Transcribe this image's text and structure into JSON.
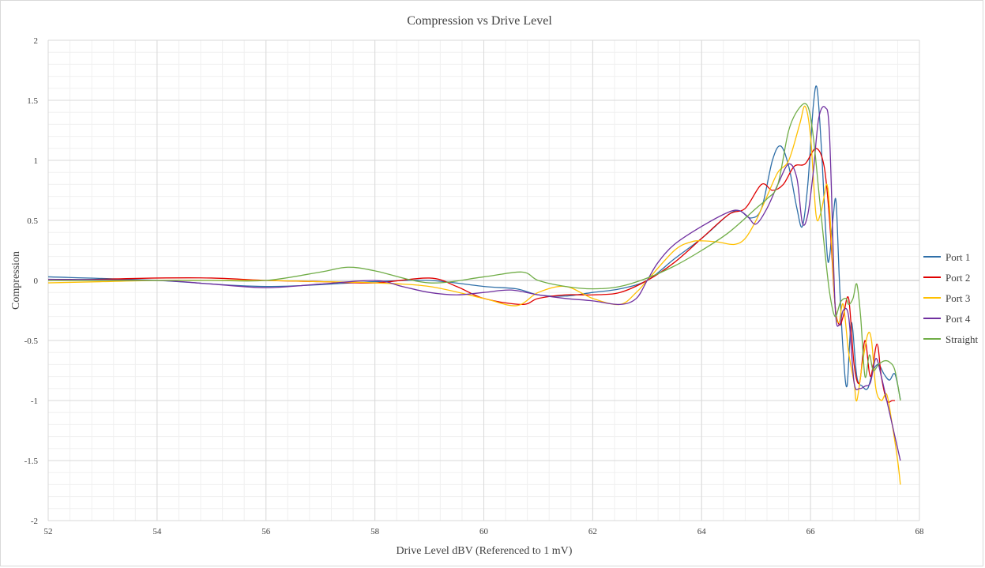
{
  "chart_data": {
    "type": "line",
    "title": "Compression vs Drive Level",
    "xlabel": "Drive Level dBV (Referenced to 1 mV)",
    "ylabel": "Compression",
    "xlim": [
      52,
      68
    ],
    "ylim": [
      -2,
      2
    ],
    "x_major_step": 2,
    "y_major_step": 0.5,
    "x_tick_labels": [
      "52",
      "54",
      "56",
      "58",
      "60",
      "62",
      "64",
      "66",
      "68"
    ],
    "y_tick_labels": [
      "-2",
      "-1.5",
      "-1",
      "-0.5",
      "0",
      "0.5",
      "1",
      "1.5",
      "2"
    ],
    "grid": "major and minor",
    "smoothed": true,
    "legend_position": "right",
    "series": [
      {
        "name": "Port 1",
        "color": "#2f6fa8",
        "points": [
          [
            52,
            0.03
          ],
          [
            54,
            0.0
          ],
          [
            56,
            -0.05
          ],
          [
            58,
            -0.01
          ],
          [
            59,
            0.0
          ],
          [
            60,
            -0.05
          ],
          [
            60.6,
            -0.07
          ],
          [
            61,
            -0.12
          ],
          [
            61.5,
            -0.13
          ],
          [
            62,
            -0.1
          ],
          [
            62.5,
            -0.07
          ],
          [
            63,
            0.0
          ],
          [
            63.5,
            0.18
          ],
          [
            64,
            0.35
          ],
          [
            64.5,
            0.55
          ],
          [
            64.7,
            0.58
          ],
          [
            64.9,
            0.52
          ],
          [
            65.1,
            0.6
          ],
          [
            65.3,
            1.0
          ],
          [
            65.45,
            1.12
          ],
          [
            65.6,
            0.95
          ],
          [
            65.75,
            0.6
          ],
          [
            65.85,
            0.45
          ],
          [
            65.95,
            0.8
          ],
          [
            66.05,
            1.45
          ],
          [
            66.12,
            1.6
          ],
          [
            66.2,
            1.1
          ],
          [
            66.3,
            0.25
          ],
          [
            66.35,
            0.2
          ],
          [
            66.42,
            0.55
          ],
          [
            66.47,
            0.65
          ],
          [
            66.53,
            0.0
          ],
          [
            66.6,
            -0.6
          ],
          [
            66.67,
            -0.88
          ],
          [
            66.75,
            -0.35
          ],
          [
            66.85,
            -0.8
          ],
          [
            66.95,
            -0.88
          ],
          [
            67.05,
            -0.9
          ],
          [
            67.15,
            -0.75
          ],
          [
            67.25,
            -0.7
          ],
          [
            67.35,
            -0.78
          ],
          [
            67.45,
            -0.83
          ],
          [
            67.55,
            -0.78
          ],
          [
            67.65,
            -0.99
          ]
        ]
      },
      {
        "name": "Port 2",
        "color": "#e00000",
        "points": [
          [
            52,
            0.0
          ],
          [
            53,
            0.01
          ],
          [
            54,
            0.02
          ],
          [
            55,
            0.02
          ],
          [
            56,
            0.0
          ],
          [
            57,
            -0.01
          ],
          [
            58,
            -0.02
          ],
          [
            59,
            0.02
          ],
          [
            59.5,
            -0.05
          ],
          [
            60,
            -0.15
          ],
          [
            60.7,
            -0.2
          ],
          [
            61,
            -0.15
          ],
          [
            61.5,
            -0.12
          ],
          [
            62,
            -0.12
          ],
          [
            62.5,
            -0.1
          ],
          [
            63,
            0.0
          ],
          [
            63.5,
            0.15
          ],
          [
            64,
            0.35
          ],
          [
            64.5,
            0.55
          ],
          [
            64.8,
            0.6
          ],
          [
            65.1,
            0.8
          ],
          [
            65.3,
            0.75
          ],
          [
            65.5,
            0.8
          ],
          [
            65.7,
            0.95
          ],
          [
            65.9,
            0.97
          ],
          [
            66.1,
            1.1
          ],
          [
            66.25,
            0.95
          ],
          [
            66.35,
            0.5
          ],
          [
            66.45,
            -0.2
          ],
          [
            66.53,
            -0.37
          ],
          [
            66.6,
            -0.3
          ],
          [
            66.7,
            -0.15
          ],
          [
            66.8,
            -0.7
          ],
          [
            66.9,
            -0.85
          ],
          [
            67.0,
            -0.5
          ],
          [
            67.1,
            -0.8
          ],
          [
            67.22,
            -0.53
          ],
          [
            67.3,
            -0.8
          ],
          [
            67.4,
            -1.0
          ],
          [
            67.5,
            -1.0
          ],
          [
            67.55,
            -1.0
          ]
        ]
      },
      {
        "name": "Port 3",
        "color": "#ffc000",
        "points": [
          [
            52,
            -0.02
          ],
          [
            53,
            -0.01
          ],
          [
            54,
            0.0
          ],
          [
            55,
            0.0
          ],
          [
            56,
            0.0
          ],
          [
            57,
            -0.01
          ],
          [
            58,
            -0.02
          ],
          [
            59,
            -0.05
          ],
          [
            60,
            -0.15
          ],
          [
            60.6,
            -0.21
          ],
          [
            61,
            -0.1
          ],
          [
            61.5,
            -0.05
          ],
          [
            62,
            -0.15
          ],
          [
            62.5,
            -0.2
          ],
          [
            62.8,
            -0.1
          ],
          [
            63,
            0.0
          ],
          [
            63.5,
            0.25
          ],
          [
            63.8,
            0.32
          ],
          [
            64,
            0.33
          ],
          [
            64.3,
            0.32
          ],
          [
            64.6,
            0.3
          ],
          [
            64.8,
            0.35
          ],
          [
            65.0,
            0.5
          ],
          [
            65.2,
            0.7
          ],
          [
            65.4,
            0.9
          ],
          [
            65.6,
            1.0
          ],
          [
            65.8,
            1.3
          ],
          [
            65.9,
            1.45
          ],
          [
            66.0,
            1.2
          ],
          [
            66.1,
            0.55
          ],
          [
            66.18,
            0.55
          ],
          [
            66.25,
            0.7
          ],
          [
            66.3,
            0.8
          ],
          [
            66.35,
            0.6
          ],
          [
            66.45,
            -0.2
          ],
          [
            66.52,
            -0.35
          ],
          [
            66.6,
            -0.2
          ],
          [
            66.7,
            -0.6
          ],
          [
            66.8,
            -0.85
          ],
          [
            66.85,
            -1.0
          ],
          [
            66.95,
            -0.7
          ],
          [
            67.05,
            -0.45
          ],
          [
            67.12,
            -0.5
          ],
          [
            67.2,
            -0.9
          ],
          [
            67.3,
            -1.0
          ],
          [
            67.4,
            -0.95
          ],
          [
            67.5,
            -1.2
          ],
          [
            67.6,
            -1.5
          ],
          [
            67.65,
            -1.7
          ]
        ]
      },
      {
        "name": "Port 4",
        "color": "#7030a0",
        "points": [
          [
            52,
            0.01
          ],
          [
            54,
            0.0
          ],
          [
            55,
            -0.03
          ],
          [
            56,
            -0.06
          ],
          [
            57,
            -0.03
          ],
          [
            58,
            0.0
          ],
          [
            58.5,
            -0.05
          ],
          [
            59,
            -0.1
          ],
          [
            59.5,
            -0.12
          ],
          [
            60,
            -0.1
          ],
          [
            60.5,
            -0.08
          ],
          [
            61,
            -0.12
          ],
          [
            61.5,
            -0.15
          ],
          [
            62,
            -0.17
          ],
          [
            62.5,
            -0.2
          ],
          [
            62.8,
            -0.15
          ],
          [
            63,
            0.0
          ],
          [
            63.2,
            0.15
          ],
          [
            63.5,
            0.3
          ],
          [
            64,
            0.45
          ],
          [
            64.5,
            0.57
          ],
          [
            64.7,
            0.58
          ],
          [
            64.85,
            0.53
          ],
          [
            65.0,
            0.47
          ],
          [
            65.2,
            0.6
          ],
          [
            65.4,
            0.8
          ],
          [
            65.6,
            0.97
          ],
          [
            65.75,
            0.85
          ],
          [
            65.85,
            0.48
          ],
          [
            65.95,
            0.55
          ],
          [
            66.05,
            0.9
          ],
          [
            66.15,
            1.35
          ],
          [
            66.27,
            1.44
          ],
          [
            66.35,
            1.2
          ],
          [
            66.45,
            -0.2
          ],
          [
            66.53,
            -0.37
          ],
          [
            66.6,
            -0.25
          ],
          [
            66.7,
            -0.3
          ],
          [
            66.8,
            -0.85
          ],
          [
            66.9,
            -0.9
          ],
          [
            67.0,
            -0.88
          ],
          [
            67.1,
            -0.85
          ],
          [
            67.2,
            -0.65
          ],
          [
            67.3,
            -0.8
          ],
          [
            67.4,
            -1.0
          ],
          [
            67.5,
            -1.2
          ],
          [
            67.6,
            -1.4
          ],
          [
            67.65,
            -1.5
          ]
        ]
      },
      {
        "name": "Straight",
        "color": "#70ad47",
        "points": [
          [
            52,
            0.0
          ],
          [
            53,
            0.0
          ],
          [
            54,
            0.0
          ],
          [
            55,
            0.0
          ],
          [
            56,
            0.0
          ],
          [
            57,
            0.07
          ],
          [
            57.5,
            0.11
          ],
          [
            58,
            0.08
          ],
          [
            59,
            -0.02
          ],
          [
            60,
            0.03
          ],
          [
            60.7,
            0.07
          ],
          [
            61,
            0.0
          ],
          [
            61.5,
            -0.05
          ],
          [
            62,
            -0.07
          ],
          [
            62.5,
            -0.05
          ],
          [
            63,
            0.02
          ],
          [
            63.5,
            0.12
          ],
          [
            64,
            0.25
          ],
          [
            64.5,
            0.4
          ],
          [
            65.0,
            0.6
          ],
          [
            65.2,
            0.68
          ],
          [
            65.4,
            0.8
          ],
          [
            65.6,
            1.25
          ],
          [
            65.8,
            1.44
          ],
          [
            65.95,
            1.45
          ],
          [
            66.05,
            1.2
          ],
          [
            66.15,
            0.75
          ],
          [
            66.25,
            0.3
          ],
          [
            66.35,
            -0.1
          ],
          [
            66.45,
            -0.3
          ],
          [
            66.55,
            -0.18
          ],
          [
            66.65,
            -0.15
          ],
          [
            66.7,
            -0.2
          ],
          [
            66.78,
            -0.15
          ],
          [
            66.85,
            -0.03
          ],
          [
            66.92,
            -0.3
          ],
          [
            67.0,
            -0.8
          ],
          [
            67.08,
            -0.62
          ],
          [
            67.15,
            -0.75
          ],
          [
            67.25,
            -0.7
          ],
          [
            67.35,
            -0.67
          ],
          [
            67.45,
            -0.68
          ],
          [
            67.55,
            -0.75
          ],
          [
            67.65,
            -1.0
          ]
        ]
      }
    ]
  }
}
